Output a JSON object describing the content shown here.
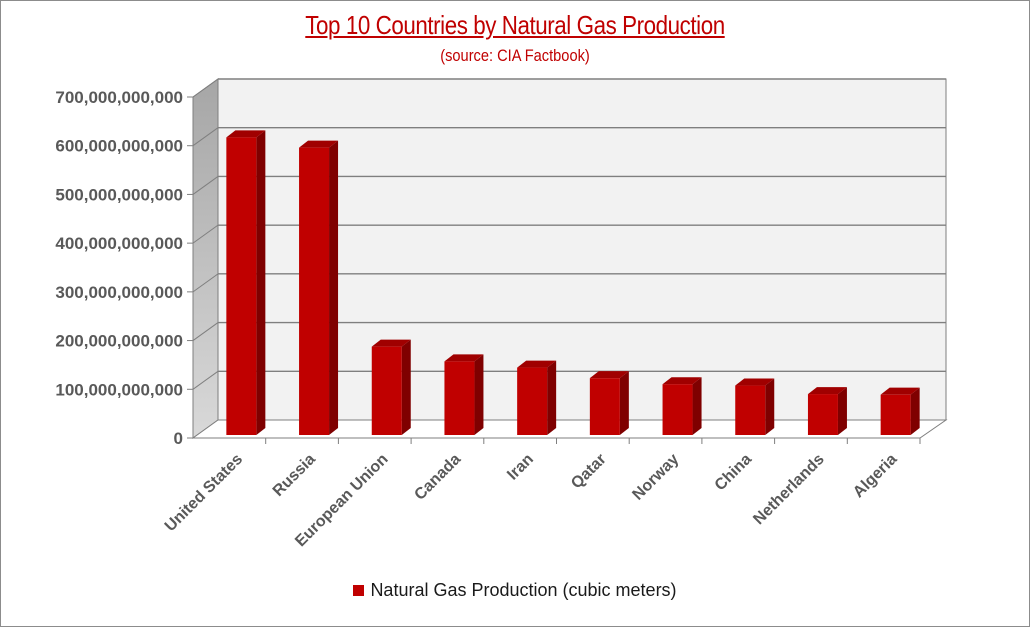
{
  "chart_data": {
    "type": "bar",
    "title": "Top 10 Countries by Natural Gas Production",
    "subtitle": "(source:  CIA Factbook)",
    "categories": [
      "United States",
      "Russia",
      "European Union",
      "Canada",
      "Iran",
      "Qatar",
      "Norway",
      "China",
      "Netherlands",
      "Algeria"
    ],
    "series": [
      {
        "name": "Natural Gas Production (cubic meters)",
        "values": [
          611000000000,
          589900000000,
          181400000000,
          151100000000,
          138400000000,
          116700000000,
          104300000000,
          101500000000,
          84020000000,
          82760000000
        ]
      }
    ],
    "ylim": [
      0,
      700000000000
    ],
    "y_ticks": [
      "0",
      "100,000,000,000",
      "200,000,000,000",
      "300,000,000,000",
      "400,000,000,000",
      "500,000,000,000",
      "600,000,000,000",
      "700,000,000,000"
    ],
    "xlabel": "",
    "ylabel": "",
    "grid": true,
    "legend_position": "bottom",
    "colors": {
      "bar": "#c00000",
      "bar_side": "#7f0000",
      "bar_top": "#a00000",
      "title": "#c00000"
    }
  }
}
